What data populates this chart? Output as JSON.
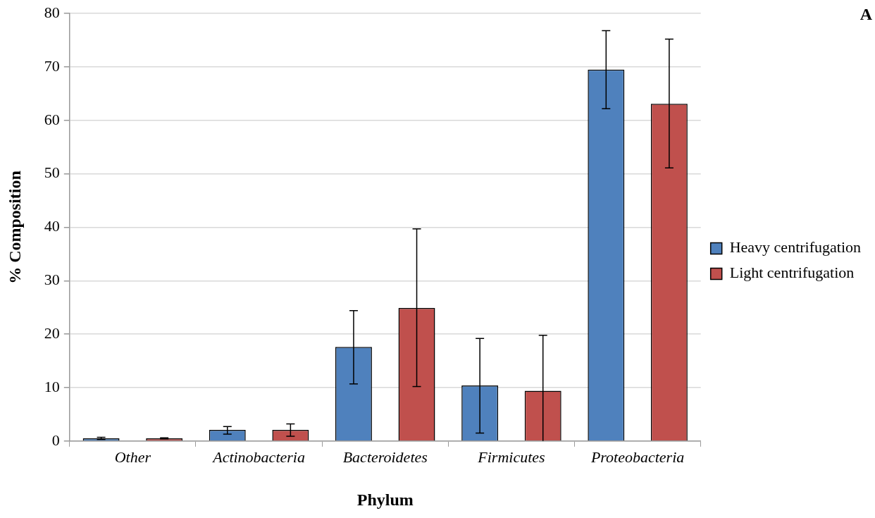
{
  "chart_data": {
    "type": "bar",
    "xlabel": "Phylum",
    "ylabel": "% Composition",
    "annotations": [
      "A"
    ],
    "categories": [
      "Other",
      "Actinobacteria",
      "Bacteroidetes",
      "Firmicutes",
      "Proteobacteria"
    ],
    "series": [
      {
        "name": "Heavy centrifugation",
        "color": "#4f81bd",
        "values": [
          0.5,
          2.1,
          17.6,
          10.4,
          69.5
        ],
        "errors": [
          [
            0.3,
            0.7
          ],
          [
            1.3,
            2.7
          ],
          [
            10.7,
            24.4
          ],
          [
            1.5,
            19.2
          ],
          [
            62.2,
            76.8
          ]
        ]
      },
      {
        "name": "Light centrifugation",
        "color": "#c0504d",
        "values": [
          0.5,
          2.1,
          24.9,
          9.4,
          63.1
        ],
        "errors": [
          [
            0.4,
            0.6
          ],
          [
            0.9,
            3.2
          ],
          [
            10.2,
            39.7
          ],
          [
            0,
            19.8
          ],
          [
            51.1,
            75.2
          ]
        ]
      }
    ],
    "ylim": [
      0,
      80
    ],
    "yticks": [
      0,
      10,
      20,
      30,
      40,
      50,
      60,
      70,
      80
    ],
    "grid": "y",
    "legend": "right"
  }
}
